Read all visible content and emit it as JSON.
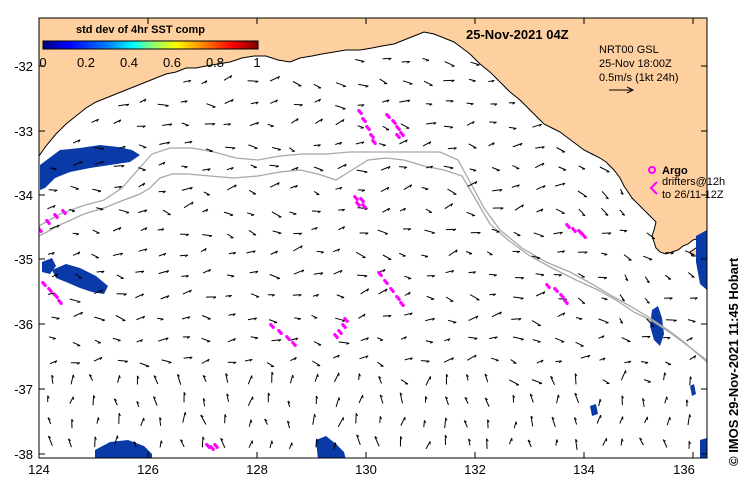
{
  "title": "25-Nov-2021 04Z",
  "colorbar": {
    "title": "std dev of 4hr SST comp",
    "ticks": [
      "0",
      "0.2",
      "0.4",
      "0.6",
      "0.8",
      "1"
    ],
    "colors": [
      "#00007f",
      "#0000ff",
      "#007fff",
      "#00ffff",
      "#7fff7f",
      "#ffff00",
      "#ff7f00",
      "#ff0000",
      "#7f0000"
    ]
  },
  "product": {
    "line1": "NRT00 GSL",
    "line2": "25-Nov 18:00Z",
    "line3": "0.5m/s (1kt 24h)"
  },
  "argo_legend": {
    "argo_label": "Argo",
    "drifters_line1": "drifters@12h",
    "drifters_line2": "to 26/11-12Z",
    "argo_color": "#ff00ff"
  },
  "axes": {
    "x_ticks": [
      "124",
      "126",
      "128",
      "130",
      "132",
      "134",
      "136"
    ],
    "y_ticks": [
      "-32",
      "-33",
      "-34",
      "-35",
      "-36",
      "-37",
      "-38"
    ]
  },
  "credit": "© IMOS 29-Nov-2021 11:45 Hobart",
  "colors": {
    "land": "#fecf9f",
    "ocean": "#ffffff",
    "contour": "#a8a8a8",
    "patch": "#0a3aa8"
  }
}
